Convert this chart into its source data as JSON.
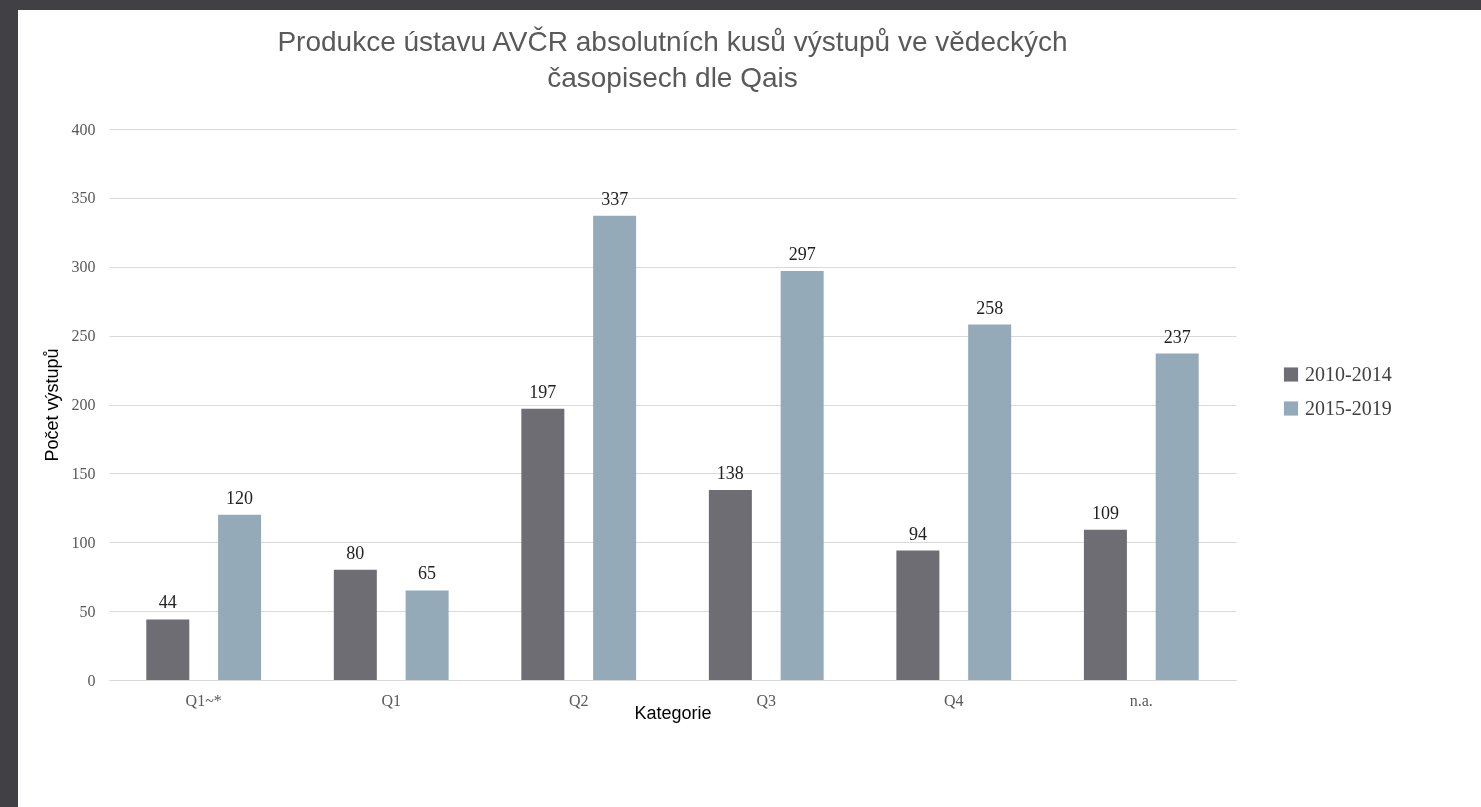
{
  "chart_data": {
    "type": "bar",
    "title": "Produkce ústavu AVČR absolutních kusů výstupů ve vědeckých časopisech dle Qais",
    "xlabel": "Kategorie",
    "ylabel": "Počet výstupů",
    "categories": [
      "Q1~*",
      "Q1",
      "Q2",
      "Q3",
      "Q4",
      "n.a."
    ],
    "series": [
      {
        "name": "2010-2014",
        "color": "#6e6d73",
        "values": [
          44,
          80,
          197,
          138,
          94,
          109
        ]
      },
      {
        "name": "2015-2019",
        "color": "#94aab9",
        "values": [
          120,
          65,
          337,
          297,
          258,
          237
        ]
      }
    ],
    "ylim": [
      0,
      400
    ],
    "yticks": [
      0,
      50,
      100,
      150,
      200,
      250,
      300,
      350,
      400
    ],
    "grid": "y",
    "legend": "right",
    "data_labels": true
  }
}
